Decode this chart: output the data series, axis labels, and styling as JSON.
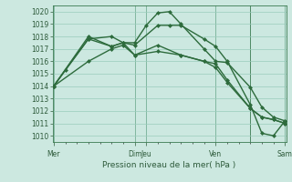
{
  "xlabel": "Pression niveau de la mer( hPa )",
  "bg_color": "#cce8e0",
  "grid_color": "#99ccbb",
  "line_color": "#2d6b3c",
  "vline_color": "#3a7a50",
  "ylim": [
    1009.5,
    1020.5
  ],
  "xlim": [
    -0.05,
    10.05
  ],
  "series": [
    {
      "x": [
        0,
        0.5,
        1.5,
        2.5,
        3.0,
        3.5,
        4.0,
        4.5,
        5.0,
        5.5,
        6.5,
        7.0,
        7.5,
        8.5,
        9.0,
        9.5,
        10.0
      ],
      "y": [
        1014.0,
        1015.3,
        1017.8,
        1018.0,
        1017.5,
        1017.5,
        1018.9,
        1019.9,
        1020.0,
        1019.0,
        1017.0,
        1016.0,
        1015.9,
        1013.9,
        1012.3,
        1011.5,
        1011.2
      ]
    },
    {
      "x": [
        0,
        1.5,
        2.5,
        3.0,
        3.5,
        4.5,
        5.0,
        5.5,
        6.5,
        7.0,
        7.5,
        8.5,
        9.0,
        9.5,
        10.0
      ],
      "y": [
        1014.0,
        1018.0,
        1017.2,
        1017.5,
        1017.3,
        1018.9,
        1018.9,
        1018.9,
        1017.8,
        1017.2,
        1016.0,
        1012.5,
        1010.2,
        1010.0,
        1011.2
      ]
    },
    {
      "x": [
        0,
        1.5,
        2.5,
        3.0,
        3.5,
        4.5,
        5.5,
        6.5,
        7.0,
        7.5,
        8.5,
        9.0,
        9.5,
        10.0
      ],
      "y": [
        1014.0,
        1016.0,
        1017.0,
        1017.3,
        1016.5,
        1016.8,
        1016.5,
        1016.0,
        1015.8,
        1014.5,
        1012.2,
        1011.5,
        1011.3,
        1011.0
      ]
    },
    {
      "x": [
        0,
        1.5,
        2.5,
        3.0,
        3.5,
        4.5,
        5.5,
        6.5,
        7.0,
        7.5,
        8.5,
        9.0,
        9.5,
        10.0
      ],
      "y": [
        1014.0,
        1017.8,
        1017.2,
        1017.5,
        1016.5,
        1017.3,
        1016.5,
        1016.0,
        1015.5,
        1014.3,
        1012.2,
        1011.5,
        1011.3,
        1011.0
      ]
    }
  ],
  "vlines_x": [
    0,
    3.5,
    4.0,
    7.0,
    8.5,
    10.0
  ],
  "xtick_positions": [
    0,
    3.5,
    4.0,
    7.0,
    10.0
  ],
  "xtick_labels": [
    "Mer",
    "Dim",
    "Jeu",
    "Ven",
    "Sam"
  ],
  "yticks": [
    1010,
    1011,
    1012,
    1013,
    1014,
    1015,
    1016,
    1017,
    1018,
    1019,
    1020
  ],
  "xlabel_fontsize": 6.5,
  "tick_fontsize": 5.5,
  "linewidth": 1.0,
  "markersize": 2.5
}
